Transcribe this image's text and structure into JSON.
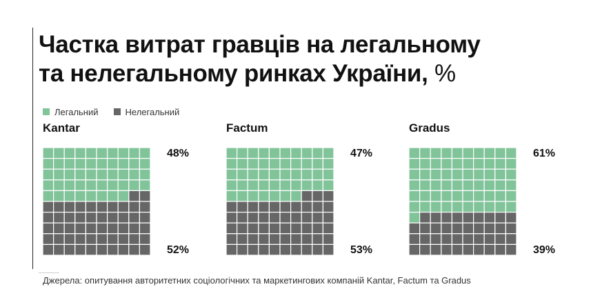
{
  "title": {
    "line1": "Частка витрат гравців на легальному",
    "line2": "та нелегальному ринках України,",
    "unit": "%"
  },
  "legend": {
    "legal": "Легальний",
    "illegal": "Нелегальний"
  },
  "colors": {
    "legal": "#82c49a",
    "illegal": "#666666",
    "cell_border": "#ffffff"
  },
  "source": "Джерела: опитування авторитетних соціологічних та маркетингових компаній Kantar, Factum та Gradus",
  "chart_data": [
    {
      "type": "waffle",
      "name": "Kantar",
      "grid": [
        10,
        10
      ],
      "series": [
        {
          "name": "Легальний",
          "value": 48,
          "label": "48%"
        },
        {
          "name": "Нелегальний",
          "value": 52,
          "label": "52%"
        }
      ]
    },
    {
      "type": "waffle",
      "name": "Factum",
      "grid": [
        10,
        10
      ],
      "series": [
        {
          "name": "Легальний",
          "value": 47,
          "label": "47%"
        },
        {
          "name": "Нелегальний",
          "value": 53,
          "label": "53%"
        }
      ]
    },
    {
      "type": "waffle",
      "name": "Gradus",
      "grid": [
        10,
        10
      ],
      "series": [
        {
          "name": "Легальний",
          "value": 61,
          "label": "61%"
        },
        {
          "name": "Нелегальний",
          "value": 39,
          "label": "39%"
        }
      ]
    }
  ]
}
